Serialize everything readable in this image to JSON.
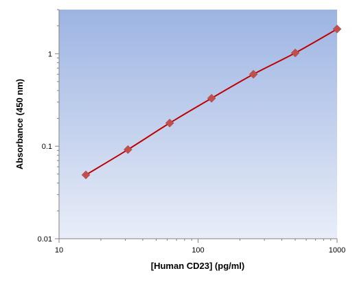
{
  "chart_data": {
    "type": "scatter",
    "title": "",
    "xlabel": "[Human CD23]  (pg/ml)",
    "ylabel": "Absorbance (450 nm)",
    "xscale": "log",
    "yscale": "log",
    "xlim": [
      10,
      1000
    ],
    "ylim": [
      0.01,
      3
    ],
    "x_ticks": [
      10,
      100,
      1000
    ],
    "x_tick_labels": [
      "10",
      "100",
      "1000"
    ],
    "y_ticks": [
      0.01,
      0.1,
      1
    ],
    "y_tick_labels": [
      "0.01",
      "0.1",
      "1"
    ],
    "grid": false,
    "legend": "none",
    "series": [
      {
        "marker": "diamond",
        "fit_line": true,
        "x": [
          15.6,
          31.3,
          62.5,
          125,
          250,
          500,
          1000
        ],
        "y": [
          0.049,
          0.092,
          0.178,
          0.33,
          0.6,
          1.02,
          1.85
        ]
      }
    ],
    "colors": {
      "plot_bg_top": "#9db4e2",
      "plot_bg_bottom": "#e8edf8",
      "marker": "#c0504d",
      "line": "#c00000"
    }
  }
}
